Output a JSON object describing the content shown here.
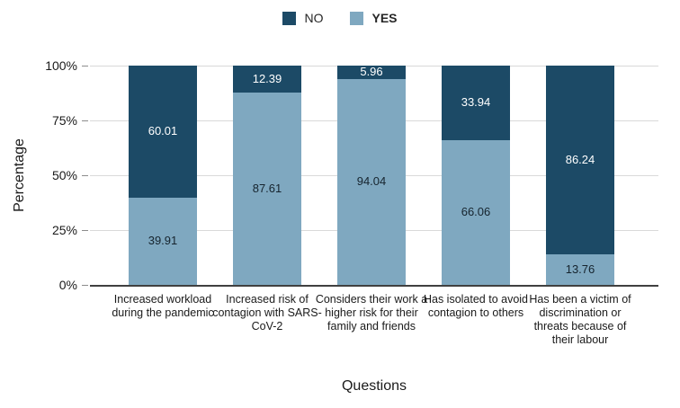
{
  "chart_data": {
    "type": "bar",
    "stacked": true,
    "orientation": "vertical",
    "title": "",
    "xlabel": "Questions",
    "ylabel": "Percentage",
    "ylim": [
      0,
      100
    ],
    "yticks": [
      "0%",
      "25%",
      "50%",
      "75%",
      "100%"
    ],
    "grid": true,
    "legend_position": "top",
    "categories": [
      "Increased workload during the pandemic",
      "Increased risk of contagion with SARS-CoV-2",
      "Considers their work a higher risk for their family and friends",
      "Has isolated to avoid contagion to others",
      "Has been a victim of discrimination or threats because of their labour"
    ],
    "series": [
      {
        "name": "NO",
        "color": "#1c4a66",
        "label_color": "#ffffff",
        "values": [
          60.01,
          12.39,
          5.96,
          33.94,
          86.24
        ]
      },
      {
        "name": "YES",
        "color": "#7fa8c0",
        "label_color": "#16242e",
        "values": [
          39.91,
          87.61,
          94.04,
          66.06,
          13.76
        ]
      }
    ]
  },
  "colors": {
    "gridline": "#d9d9d9",
    "axis_line": "#404040",
    "tick": "#8c8c8c",
    "text": "#1a1a1a"
  }
}
